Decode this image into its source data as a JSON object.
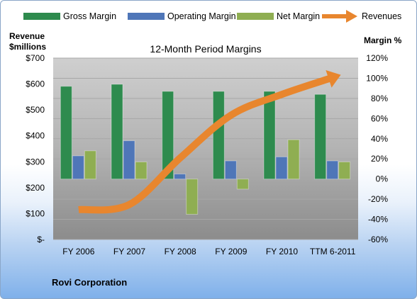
{
  "chart_data": {
    "type": "bar",
    "title": "12-Month Period Margins",
    "left_axis_label_line1": "Revenue",
    "left_axis_label_line2": "$millions",
    "right_axis_label": "Margin %",
    "categories": [
      "FY 2006",
      "FY 2007",
      "FY 2008",
      "FY 2009",
      "FY 2010",
      "TTM 6-2011"
    ],
    "series": [
      {
        "name": "Gross Margin",
        "type": "bar",
        "axis": "right",
        "color": "#2e8b4e",
        "values": [
          92,
          94,
          87,
          87,
          87,
          84
        ]
      },
      {
        "name": "Operating Margin",
        "type": "bar",
        "axis": "right",
        "color": "#4f76b8",
        "values": [
          23,
          38,
          5,
          18,
          22,
          18
        ]
      },
      {
        "name": "Net Margin",
        "type": "bar",
        "axis": "right",
        "color": "#8fae52",
        "values": [
          28,
          17,
          -35,
          -10,
          39,
          17
        ]
      },
      {
        "name": "Revenues",
        "type": "line",
        "axis": "left",
        "color": "#e8862e",
        "values": [
          115,
          135,
          315,
          480,
          560,
          625
        ]
      }
    ],
    "left_axis": {
      "min": 0,
      "max": 700,
      "ticks": [
        "$-",
        "$100",
        "$200",
        "$300",
        "$400",
        "$500",
        "$600",
        "$700"
      ]
    },
    "right_axis": {
      "min": -60,
      "max": 120,
      "ticks": [
        "-60%",
        "-40%",
        "-20%",
        "0%",
        "20%",
        "40%",
        "60%",
        "80%",
        "100%",
        "120%"
      ]
    },
    "legend_position": "top",
    "grid": true
  },
  "footer": {
    "company": "Rovi Corporation"
  }
}
